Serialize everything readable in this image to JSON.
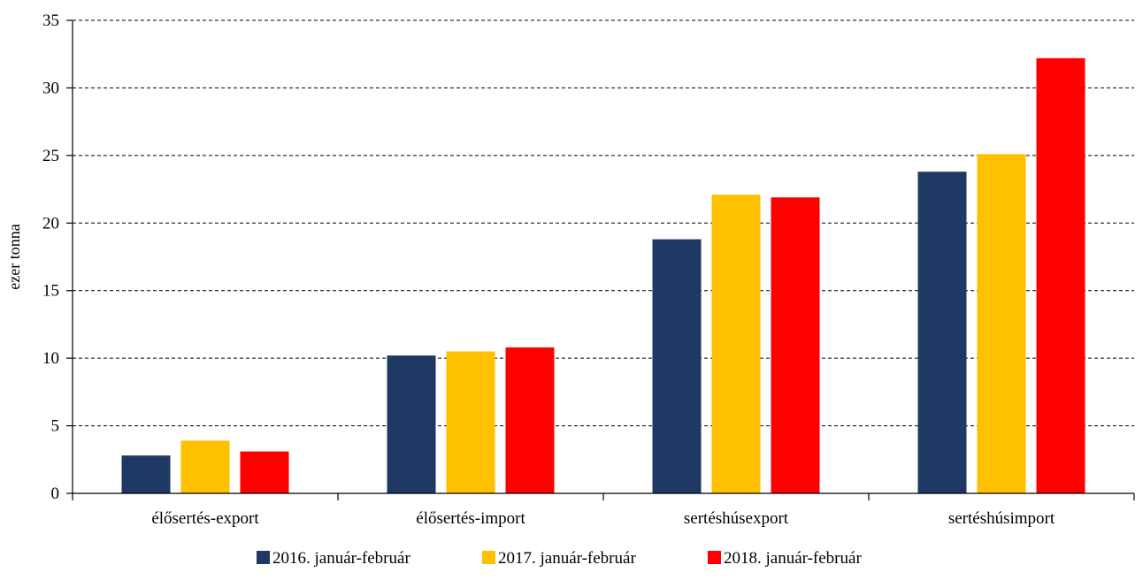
{
  "chart_data": {
    "type": "bar",
    "title": "",
    "xlabel": "",
    "ylabel": "ezer tonna",
    "ylim": [
      0,
      35
    ],
    "yticks": [
      0,
      5,
      10,
      15,
      20,
      25,
      30,
      35
    ],
    "grid": "horizontal dashed",
    "legend_position": "bottom",
    "categories": [
      "élősertés-export",
      "élősertés-import",
      "sertéshúsexport",
      "sertéshúsimport"
    ],
    "series": [
      {
        "name": "2016. január-február",
        "color": "#1f3864",
        "values": [
          2.8,
          10.2,
          18.8,
          23.8
        ]
      },
      {
        "name": "2017. január-február",
        "color": "#ffc000",
        "values": [
          3.9,
          10.5,
          22.1,
          25.1
        ]
      },
      {
        "name": "2018. január-február",
        "color": "#ff0000",
        "values": [
          3.1,
          10.8,
          21.9,
          32.2
        ]
      }
    ]
  }
}
